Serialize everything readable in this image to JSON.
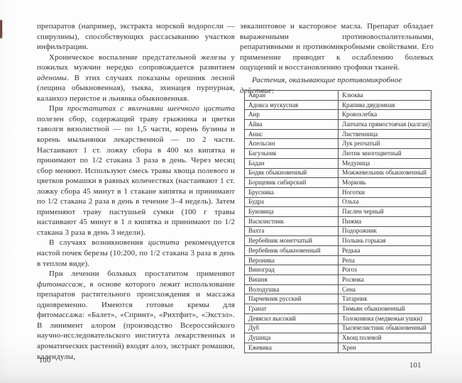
{
  "colors": {
    "page_bg": "#fdfdfd",
    "ink": "#3e3e3e",
    "table_border": "#555555",
    "edge_mark": "#5c2b24"
  },
  "left_page": {
    "page_number": "100",
    "paragraphs": [
      {
        "indent": false,
        "continues": false,
        "segments": [
          {
            "t": "препаратов (например, экстракта морской водоросли — спирулины), способствующих рассасыванию участков инфильтрации.",
            "i": false
          }
        ]
      },
      {
        "indent": true,
        "continues": false,
        "segments": [
          {
            "t": "Хроническое воспаление предстательной железы у пожилых мужчин нередко сопровождается развитием ",
            "i": false
          },
          {
            "t": "аденомы",
            "i": true
          },
          {
            "t": ". В этих случаях показаны орешник лесной (лещина обыкновенная), тыква, эхинацея пурпурная, каланхоэ перистое и льнянка обыкновенная.",
            "i": false
          }
        ]
      },
      {
        "indent": true,
        "continues": false,
        "segments": [
          {
            "t": "При ",
            "i": false
          },
          {
            "t": "простатитах с явлениями шеечного цистита",
            "i": true
          },
          {
            "t": " полезен сбор, содержащий траву грыжника и цветки таволги вязолистной — по 1,5 части, корень бузины и корень мыльнянки лекарственной — по 2 части. Настаивают 1 ст. ложку сбора в 400 мл кипятка и принимают по 1/2 стакана 3 раза в день. Через месяц сбор меняют. Используют смесь травы хвоща полевого и цветков ромашки в равных количествах (настаивают 1 ст. ложку сбора 45 минут в 1 стакане кипятка и принимают по 1/2 стакана 2 раза в день в течение 3–4 недель). Затем применяют траву пастушьей сумки (100 г травы настаивают 45 минут в 1 л кипятка и принимают по 1/2 стакана 3 раза в день 3 недели).",
            "i": false
          }
        ]
      },
      {
        "indent": true,
        "continues": false,
        "segments": [
          {
            "t": "В случаях возникновения ",
            "i": false
          },
          {
            "t": "цистита",
            "i": true
          },
          {
            "t": " рекомендуется настой почек березы (10:200, по 1/2 стакана 3 раза в день в теплом виде).",
            "i": false
          }
        ]
      },
      {
        "indent": true,
        "continues": true,
        "segments": [
          {
            "t": "При лечении больных простатитом применяют ",
            "i": false
          },
          {
            "t": "фитомассаж",
            "i": true
          },
          {
            "t": ", в основе которого лежит использование препаратов растительного происхождения и массажа одновременно. Имеются готовые кремы для фитомассажа: «Балет», «Спринт», «Рихтфит», «Экстэл». В линимент алором (производство Всероссийского научно-исследовательского института лекарственных и ароматических растений) входят алоэ, экстракт ромашки, календулы,",
            "i": false
          }
        ]
      }
    ]
  },
  "right_page": {
    "page_number": "101",
    "paragraphs": [
      {
        "indent": false,
        "continues": false,
        "segments": [
          {
            "t": "эвкалиптовое и касторовое масла. Препарат обладает выраженными противовоспалительными, репаративными и противомикробными свойствами. Его применение приводит к ослаблению болевых ощущений и восстановлению трофики тканей.",
            "i": false
          }
        ]
      }
    ],
    "table_caption": "Растения, оказывающие противомикробное действие:",
    "table": {
      "rows": [
        [
          "Авран",
          "Клюква"
        ],
        [
          "Адокса мускусная",
          "Крапива двудомная"
        ],
        [
          "Аир",
          "Кровохлебка"
        ],
        [
          "Айва",
          "Лапчатка прямостоячая (калган)"
        ],
        [
          "Анис",
          "Лиственница"
        ],
        [
          "Апельсин",
          "Лук репчатый"
        ],
        [
          "Багульник",
          "Лютик многоцветный"
        ],
        [
          "Бадан",
          "Медуница"
        ],
        [
          "Бодяк обыкновенный",
          "Можжевельник обыкновенный"
        ],
        [
          "Борщевик сибирский",
          "Морковь"
        ],
        [
          "Брусника",
          "Ноготки"
        ],
        [
          "Будра",
          "Ольха"
        ],
        [
          "Буковица",
          "Паслен черный"
        ],
        [
          "Василистник",
          "Пижма"
        ],
        [
          "Вахта",
          "Подорожник"
        ],
        [
          "Вербейник монетчатый",
          "Полынь горькая"
        ],
        [
          "Вербейник обыкновенный",
          "Редька"
        ],
        [
          "Вероника",
          "Репа"
        ],
        [
          "Виноград",
          "Рогоз"
        ],
        [
          "Вишня",
          "Росянка"
        ],
        [
          "Володушка",
          "Сена"
        ],
        [
          "Парчевник русский",
          "Татарник"
        ],
        [
          "Гранат",
          "Тимьян обыкновенный"
        ],
        [
          "Девясил высокий",
          "Толокнянка (медвежьи ушки)"
        ],
        [
          "Дуб",
          "Тысячелистник обыкновенный"
        ],
        [
          "Душица",
          "Хвощ полевой"
        ],
        [
          "Ежевика",
          "Хрен"
        ]
      ]
    }
  }
}
